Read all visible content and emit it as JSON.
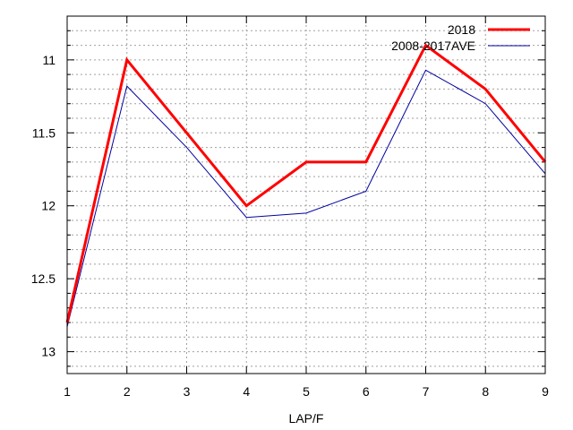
{
  "chart_data": {
    "type": "line",
    "x": [
      1,
      2,
      3,
      4,
      5,
      6,
      7,
      8,
      9
    ],
    "xlabel": "LAP/F",
    "ylabel": "",
    "title": "",
    "xlim": [
      1,
      9
    ],
    "ylim": [
      10.7,
      13.15
    ],
    "y_inverted": true,
    "x_ticks": [
      "1",
      "2",
      "3",
      "4",
      "5",
      "6",
      "7",
      "8",
      "9"
    ],
    "y_ticks": [
      {
        "value": 11,
        "label": "11"
      },
      {
        "value": 11.5,
        "label": "11.5"
      },
      {
        "value": 12,
        "label": "12"
      },
      {
        "value": 12.5,
        "label": "12.5"
      },
      {
        "value": 13,
        "label": "13"
      }
    ],
    "y_minor_step": 0.1,
    "grid": true,
    "legend_position": "top-right",
    "series": [
      {
        "name": "2018",
        "color": "#ff0000",
        "values": [
          12.8,
          11.0,
          11.5,
          12.0,
          11.7,
          11.7,
          10.9,
          11.2,
          11.7
        ]
      },
      {
        "name": "2008-2017AVE",
        "color": "#0000a0",
        "values": [
          12.83,
          11.18,
          11.6,
          12.08,
          12.05,
          11.9,
          11.07,
          11.3,
          11.78
        ]
      }
    ]
  }
}
